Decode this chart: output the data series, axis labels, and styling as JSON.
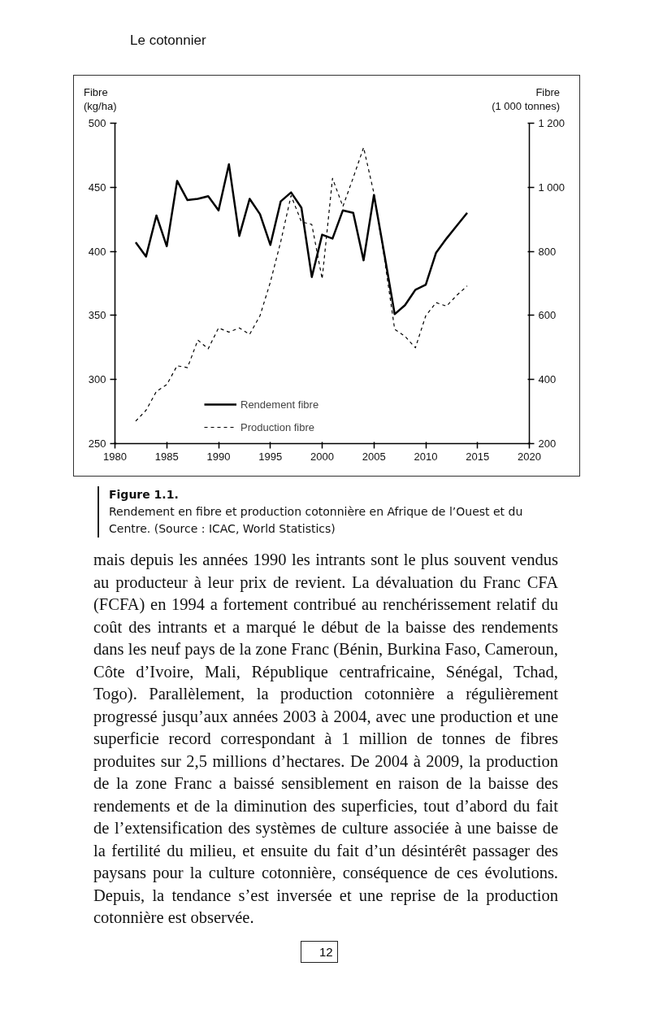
{
  "chart_data": {
    "type": "line",
    "xlabel": null,
    "ylabel": "Fibre\n(kg/ha)",
    "y2label": "Fibre\n(1 000 tonnes)",
    "xlim": [
      1980,
      2020
    ],
    "xticks": [
      1980,
      1985,
      1990,
      1995,
      2000,
      2005,
      2010,
      2015,
      2020
    ],
    "ylim": [
      250,
      500
    ],
    "yticks": [
      250,
      300,
      350,
      400,
      450,
      500
    ],
    "y2lim": [
      200,
      1200
    ],
    "y2ticks": [
      200,
      400,
      600,
      800,
      {
        "value": 1000,
        "label": "1 000"
      },
      {
        "value": 1200,
        "label": "1 200"
      }
    ],
    "grid": false,
    "legend": "bottom left",
    "marker": "none",
    "series": [
      {
        "name": "Rendement fibre",
        "color": "#000000",
        "line_style": "solid",
        "x": [
          1982,
          1983,
          1984,
          1985,
          1986,
          1987,
          1988,
          1989,
          1990,
          1991,
          1992,
          1993,
          1994,
          1995,
          1996,
          1997,
          1998,
          1999,
          2000,
          2001,
          2002,
          2003,
          2004,
          2005,
          2006,
          2007,
          2008,
          2009,
          2010,
          2011,
          2012,
          2013,
          2014
        ],
        "values": [
          407,
          396,
          428,
          404,
          455,
          440,
          441,
          443,
          432,
          468,
          412,
          441,
          429,
          405,
          439,
          446,
          434,
          380,
          413,
          410,
          432,
          430,
          393,
          444,
          398,
          351,
          358,
          370,
          374,
          399,
          410,
          420,
          430
        ]
      },
      {
        "name": "Production fibre",
        "color": "#000000",
        "line_style": "dashed",
        "axis": "y2",
        "x": [
          1982,
          1983,
          1984,
          1985,
          1986,
          1987,
          1988,
          1989,
          1990,
          1991,
          1992,
          1993,
          1994,
          1995,
          1996,
          1997,
          1998,
          1999,
          2000,
          2001,
          2002,
          2003,
          2004,
          2005,
          2006,
          2007,
          2008,
          2009,
          2010,
          2011,
          2012,
          2013,
          2014
        ],
        "values": [
          270,
          304,
          363,
          384,
          443,
          437,
          523,
          496,
          561,
          548,
          561,
          541,
          599,
          704,
          830,
          974,
          892,
          884,
          714,
          1028,
          940,
          1030,
          1124,
          981,
          780,
          557,
          535,
          499,
          599,
          640,
          629,
          663,
          692
        ]
      }
    ],
    "annotations": [
      "Le cotonnier",
      "Figure 1.1.",
      "Rendement en fibre et production cotonnière en Afrique de l’Ouest et du Centre. (Source : ICAC, World Statistics)",
      "mais depuis les années 1990 les intrants sont le plus souvent vendus au producteur à leur prix de revient. La dévaluation du Franc CFA (FCFA) en 1994 a fortement contribué au renchérissement relatif du coût des intrants et a marqué le début de la baisse des rendements dans les neuf pays de la zone Franc (Bénin, Burkina Faso, Cameroun, Côte d’Ivoire, Mali, République centrafricaine, Sénégal, Tchad, Togo). Parallèlement, la production cotonnière a régulièrement progressé jusqu’aux années 2003 à 2004, avec une production et une superficie record correspondant à 1 million de tonnes de fibres produites sur 2,5 millions d’hectares. De 2004 à 2009, la production de la zone Franc a baissé sensiblement en raison de la baisse des rendements et de la diminution des superficies, tout d’abord du fait de l’extensification des systèmes de culture associée à une baisse de la fertilité du milieu, et ensuite du fait d’un désintérêt passager des paysans pour la culture cotonnière, conséquence de ces évolutions. Depuis, la tendance s’est inversée et une reprise de la production cotonnière est observée.",
      "12"
    ]
  }
}
